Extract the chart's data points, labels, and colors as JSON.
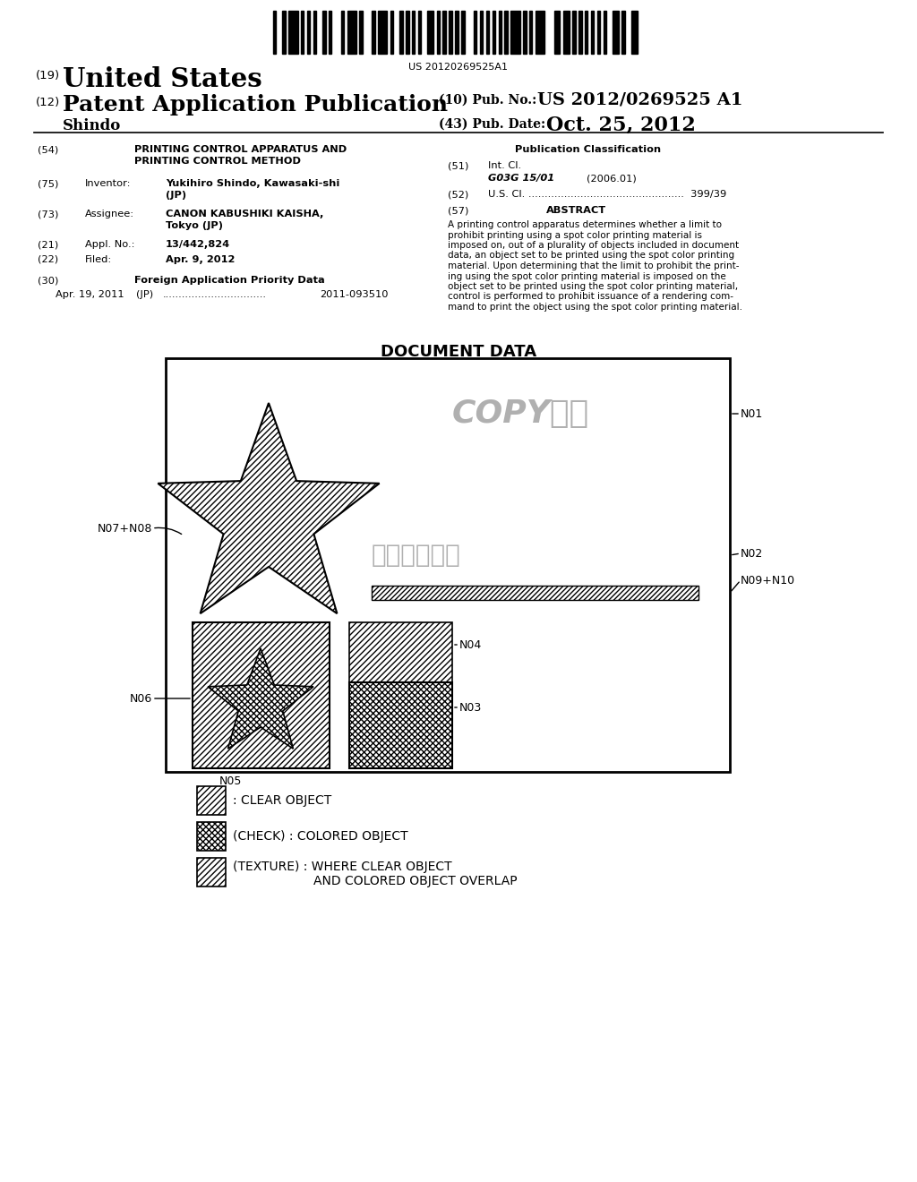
{
  "bg_color": "#ffffff",
  "barcode_text": "US 20120269525A1",
  "patent_number_large": "US 2012/0269525 A1",
  "pub_date_label": "Oct. 25, 2012",
  "country": "United States",
  "kind": "Patent Application Publication",
  "inventor_name": "Yukihiro Shindo",
  "inventor_city": "Kawasaki-shi",
  "inventor_loc2": "(JP)",
  "assignee_name": "CANON KABUSHIKI KAISHA,",
  "assignee_loc": "Tokyo (JP)",
  "appl_no": "13/442,824",
  "filed": "Apr. 9, 2012",
  "title54_line1": "PRINTING CONTROL APPARATUS AND",
  "title54_line2": "PRINTING CONTROL METHOD",
  "int_cl": "G03G 15/01",
  "int_cl_date": "(2006.01)",
  "us_cl": "399/39",
  "abstract_lines": [
    "A printing control apparatus determines whether a limit to",
    "prohibit printing using a spot color printing material is",
    "imposed on, out of a plurality of objects included in document",
    "data, an object set to be printed using the spot color printing",
    "material. Upon determining that the limit to prohibit the print-",
    "ing using the spot color printing material is imposed on the",
    "object set to be printed using the spot color printing material,",
    "control is performed to prohibit issuance of a rendering com-",
    "mand to print the object using the spot color printing material."
  ],
  "diagram_title": "DOCUMENT DATA",
  "foreign_priority_date": "Apr. 19, 2011",
  "foreign_priority_country": "(JP)",
  "foreign_priority_dots": "................................",
  "foreign_priority_number": "2011-093510",
  "copy_text": "COPY禁止",
  "kanji_text": "文字デザイン",
  "label_n01": "N01",
  "label_n02": "N02",
  "label_n03": "N03",
  "label_n04": "N04",
  "label_n05": "N05",
  "label_n06": "N06",
  "label_n07n08": "N07+N08",
  "label_n09n10": "N09+N10",
  "leg1_text": ": CLEAR OBJECT",
  "leg2_text": "(CHECK) : COLORED OBJECT",
  "leg3_line1": "(TEXTURE) : WHERE CLEAR OBJECT",
  "leg3_line2": "AND COLORED OBJECT OVERLAP"
}
